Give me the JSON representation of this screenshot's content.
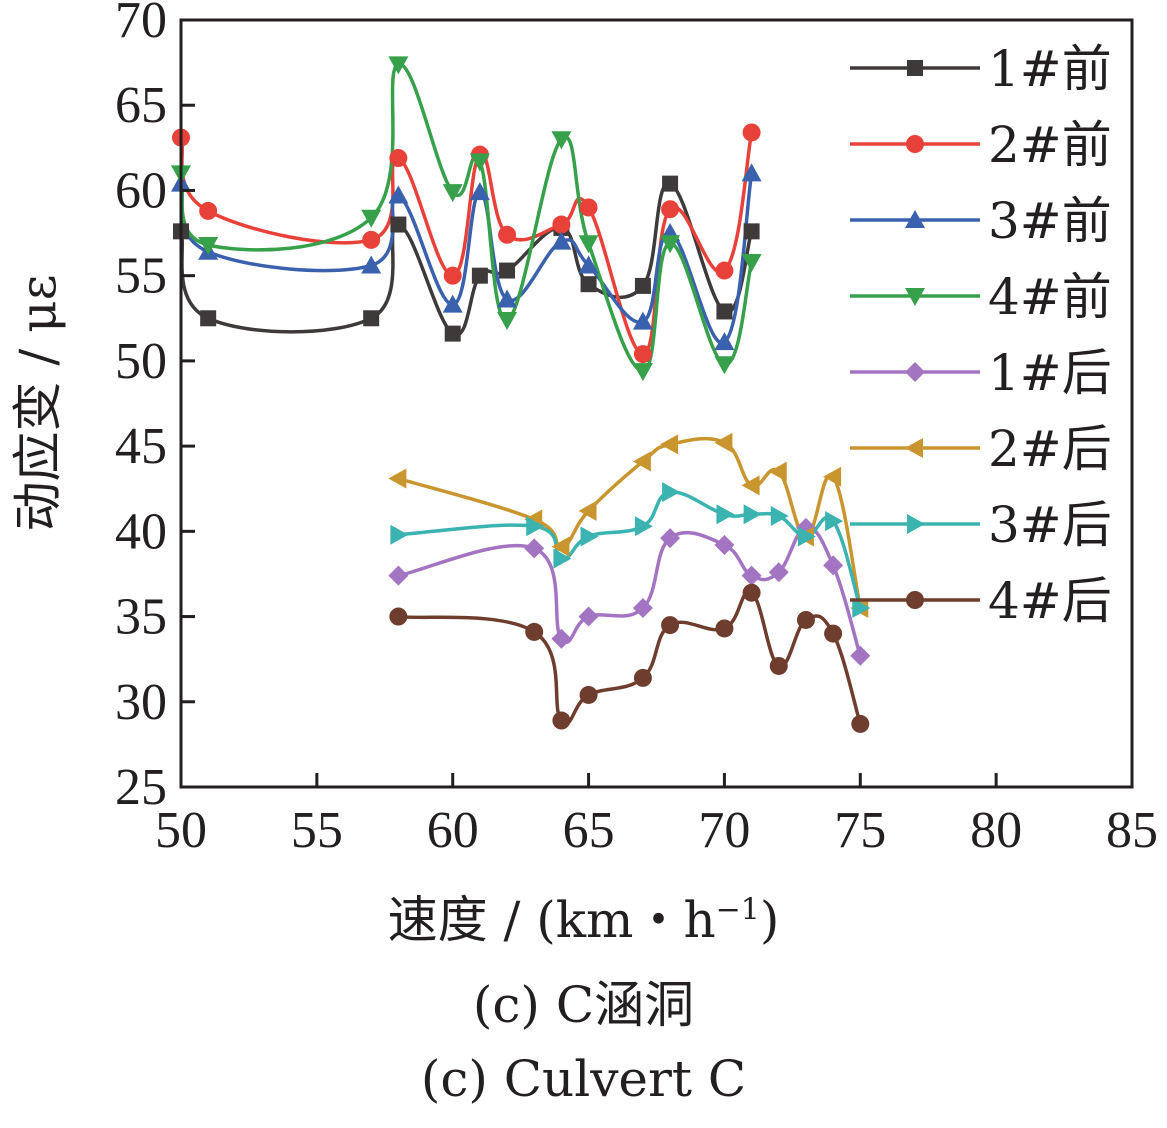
{
  "chart_data": {
    "type": "line",
    "xlabel": "速度 / (km・h",
    "xlabel_sup": "−1",
    "xlabel_close": ")",
    "ylabel": "动应变 / με",
    "xlim": [
      50,
      85
    ],
    "ylim": [
      25,
      70
    ],
    "xticks": [
      "50",
      "55",
      "60",
      "65",
      "70",
      "75",
      "80",
      "85"
    ],
    "yticks": [
      "25",
      "30",
      "35",
      "40",
      "45",
      "50",
      "55",
      "60",
      "65",
      "70"
    ],
    "grid": false,
    "legend_position": "top-right",
    "series": [
      {
        "name": "1#前",
        "color": "#3e3a39",
        "marker": "square",
        "x": [
          50,
          51,
          57,
          58,
          60,
          61,
          62,
          64,
          65,
          67,
          68,
          70,
          71
        ],
        "y": [
          57.6,
          52.5,
          52.5,
          58.0,
          51.6,
          55.0,
          55.3,
          57.8,
          54.5,
          54.4,
          60.4,
          52.9,
          57.6
        ]
      },
      {
        "name": "2#前",
        "color": "#e8413a",
        "marker": "circle",
        "x": [
          50,
          51,
          57,
          58,
          60,
          61,
          62,
          64,
          65,
          67,
          68,
          70,
          71
        ],
        "y": [
          63.1,
          58.8,
          57.1,
          61.9,
          55.0,
          62.1,
          57.4,
          58.0,
          59.0,
          50.4,
          58.9,
          55.3,
          63.4
        ]
      },
      {
        "name": "3#前",
        "color": "#3a61ad",
        "marker": "triangle-up",
        "x": [
          50,
          51,
          57,
          58,
          60,
          61,
          62,
          64,
          65,
          67,
          68,
          70,
          71
        ],
        "y": [
          60.4,
          56.4,
          55.6,
          59.7,
          53.3,
          59.9,
          53.6,
          57.0,
          55.6,
          52.3,
          57.5,
          51.1,
          61.0
        ]
      },
      {
        "name": "4#前",
        "color": "#36a04a",
        "marker": "triangle-down",
        "x": [
          50,
          51,
          57,
          58,
          60,
          61,
          62,
          64,
          65,
          67,
          68,
          70,
          71
        ],
        "y": [
          61.0,
          56.8,
          58.4,
          67.4,
          59.9,
          61.7,
          52.4,
          63.0,
          56.9,
          49.4,
          56.9,
          49.8,
          55.8
        ]
      },
      {
        "name": "1#后",
        "color": "#a374c2",
        "marker": "diamond",
        "x": [
          58,
          63,
          64,
          65,
          67,
          68,
          70,
          71,
          72,
          73,
          74,
          75
        ],
        "y": [
          37.4,
          39.0,
          33.7,
          35.0,
          35.5,
          39.6,
          39.2,
          37.4,
          37.6,
          40.2,
          38.0,
          32.7
        ]
      },
      {
        "name": "2#后",
        "color": "#c8952e",
        "marker": "triangle-left",
        "x": [
          58,
          63,
          64,
          65,
          67,
          68,
          70,
          71,
          72,
          73,
          74,
          75
        ],
        "y": [
          43.1,
          40.7,
          39.1,
          41.2,
          44.1,
          45.1,
          45.2,
          42.7,
          43.5,
          39.7,
          43.2,
          35.5
        ]
      },
      {
        "name": "3#后",
        "color": "#3bb3b0",
        "marker": "triangle-right",
        "x": [
          58,
          63,
          64,
          65,
          67,
          68,
          70,
          71,
          72,
          73,
          74,
          75
        ],
        "y": [
          39.8,
          40.3,
          38.4,
          39.7,
          40.3,
          42.3,
          41.0,
          41.0,
          40.9,
          39.7,
          40.6,
          35.5
        ]
      },
      {
        "name": "4#后",
        "color": "#6e3d2e",
        "marker": "circle",
        "x": [
          58,
          63,
          64,
          65,
          67,
          68,
          70,
          71,
          72,
          73,
          74,
          75
        ],
        "y": [
          35.0,
          34.1,
          28.9,
          30.4,
          31.4,
          34.5,
          34.3,
          36.4,
          32.1,
          34.8,
          34.0,
          28.7
        ]
      }
    ]
  },
  "captions": {
    "zh": "(c)  C涵洞",
    "en": "(c)  Culvert C"
  }
}
